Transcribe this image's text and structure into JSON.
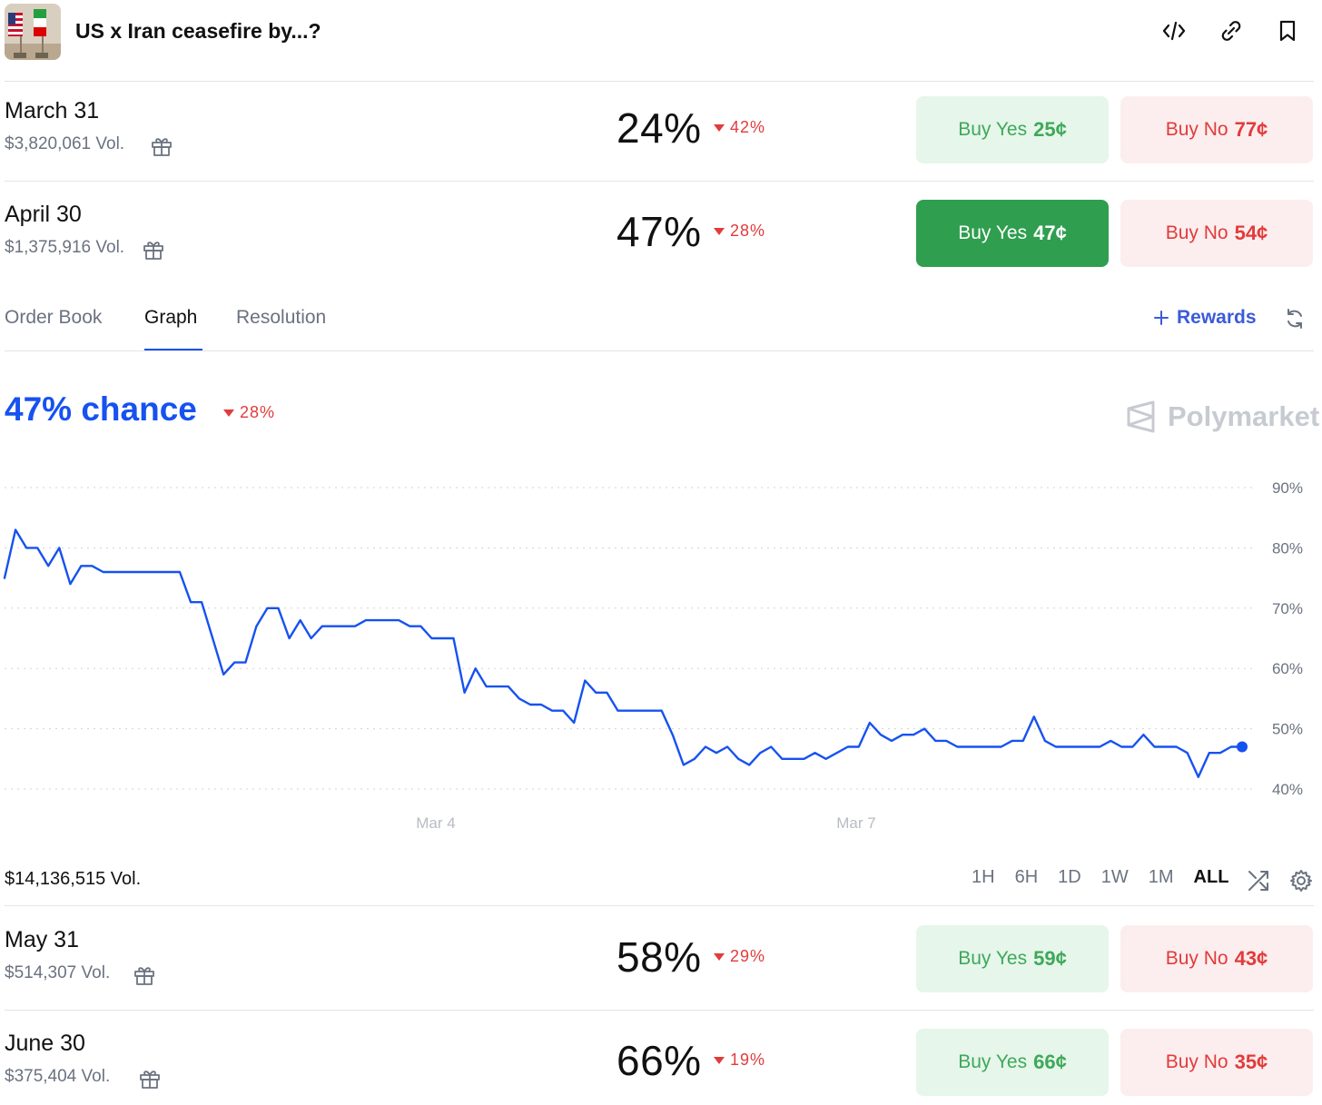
{
  "header": {
    "title": "US x Iran ceasefire by...?",
    "icons": [
      "embed-code-icon",
      "link-icon",
      "bookmark-icon"
    ]
  },
  "markets_top": [
    {
      "date": "March 31",
      "volume": "$3,820,061 Vol.",
      "percent": "24%",
      "change": "42%",
      "change_dir": "down",
      "yes_label": "Buy Yes",
      "yes_price": "25¢",
      "no_label": "Buy No",
      "no_price": "77¢",
      "yes_active": false
    },
    {
      "date": "April 30",
      "volume": "$1,375,916 Vol.",
      "percent": "47%",
      "change": "28%",
      "change_dir": "down",
      "yes_label": "Buy Yes",
      "yes_price": "47¢",
      "no_label": "Buy No",
      "no_price": "54¢",
      "yes_active": true
    }
  ],
  "tabs": [
    {
      "label": "Order Book",
      "active": false
    },
    {
      "label": "Graph",
      "active": true
    },
    {
      "label": "Resolution",
      "active": false
    }
  ],
  "rewards_label": "Rewards",
  "chart_header": {
    "chance": "47% chance",
    "change": "28%",
    "watermark": "Polymarket"
  },
  "chart_data": {
    "type": "line",
    "series": [
      {
        "values": [
          75,
          83,
          80,
          80,
          77,
          80,
          74,
          77,
          77,
          76,
          76,
          76,
          76,
          76,
          76,
          76,
          76,
          71,
          71,
          65,
          59,
          61,
          61,
          67,
          70,
          70,
          65,
          68,
          65,
          67,
          67,
          67,
          67,
          68,
          68,
          68,
          68,
          67,
          67,
          65,
          65,
          65,
          56,
          60,
          57,
          57,
          57,
          55,
          54,
          54,
          53,
          53,
          51,
          58,
          56,
          56,
          53,
          53,
          53,
          53,
          53,
          49,
          44,
          45,
          47,
          46,
          47,
          45,
          44,
          46,
          47,
          45,
          45,
          45,
          46,
          45,
          46,
          47,
          47,
          51,
          49,
          48,
          49,
          49,
          50,
          48,
          48,
          47,
          47,
          47,
          47,
          47,
          48,
          48,
          52,
          48,
          47,
          47,
          47,
          47,
          47,
          48,
          47,
          47,
          49,
          47,
          47,
          47,
          46,
          42,
          46,
          46,
          47,
          47
        ]
      }
    ],
    "x_ticks": [
      "Mar 4",
      "Mar 7"
    ],
    "y_ticks": [
      "90%",
      "80%",
      "70%",
      "60%",
      "50%",
      "40%"
    ],
    "ylim": [
      40,
      90
    ],
    "grid": true,
    "line_color": "#1652f0",
    "last_point": 47
  },
  "footer": {
    "total_volume": "$14,136,515 Vol.",
    "ranges": [
      "1H",
      "6H",
      "1D",
      "1W",
      "1M",
      "ALL"
    ],
    "active_range": "ALL"
  },
  "markets_bottom": [
    {
      "date": "May 31",
      "volume": "$514,307 Vol.",
      "percent": "58%",
      "change": "29%",
      "change_dir": "down",
      "yes_label": "Buy Yes",
      "yes_price": "59¢",
      "no_label": "Buy No",
      "no_price": "43¢",
      "yes_active": false
    },
    {
      "date": "June 30",
      "volume": "$375,404 Vol.",
      "percent": "66%",
      "change": "19%",
      "change_dir": "down",
      "yes_label": "Buy Yes",
      "yes_price": "66¢",
      "no_label": "Buy No",
      "no_price": "35¢",
      "yes_active": false
    }
  ],
  "colors": {
    "accent": "#1652f0",
    "yes": "#3fa85a",
    "yes_active_bg": "#2f9e4f",
    "no": "#e23b3b",
    "rewards": "#3b5bdb"
  }
}
